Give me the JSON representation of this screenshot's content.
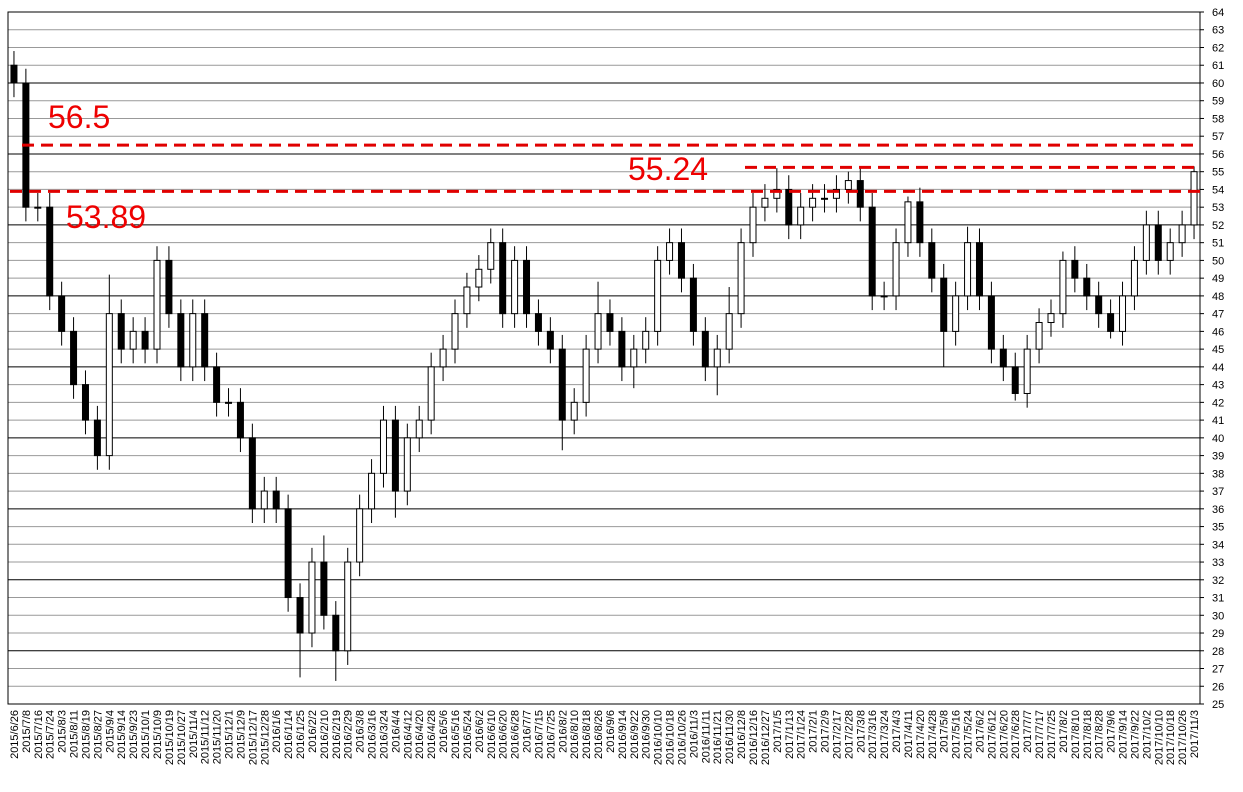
{
  "chart_data": {
    "type": "candlestick",
    "categories": [
      "2015/6/26",
      "2015/7/8",
      "2015/7/16",
      "2015/7/24",
      "2015/8/3",
      "2015/8/11",
      "2015/8/19",
      "2015/8/27",
      "2015/9/4",
      "2015/9/14",
      "2015/9/23",
      "2015/10/1",
      "2015/10/9",
      "2015/10/19",
      "2015/10/27",
      "2015/11/4",
      "2015/11/12",
      "2015/11/20",
      "2015/12/1",
      "2015/12/9",
      "2015/12/17",
      "2015/12/28",
      "2016/1/6",
      "2016/1/14",
      "2016/1/25",
      "2016/2/2",
      "2016/2/10",
      "2016/2/19",
      "2016/2/29",
      "2016/3/8",
      "2016/3/16",
      "2016/3/24",
      "2016/4/4",
      "2016/4/12",
      "2016/4/20",
      "2016/4/28",
      "2016/5/6",
      "2016/5/16",
      "2016/5/24",
      "2016/6/2",
      "2016/6/10",
      "2016/6/20",
      "2016/6/28",
      "2016/7/7",
      "2016/7/15",
      "2016/7/25",
      "2016/8/2",
      "2016/8/10",
      "2016/8/18",
      "2016/8/26",
      "2016/9/6",
      "2016/9/14",
      "2016/9/22",
      "2016/9/30",
      "2016/10/10",
      "2016/10/18",
      "2016/10/26",
      "2016/11/3",
      "2016/11/11",
      "2016/11/21",
      "2016/11/30",
      "2016/12/8",
      "2016/12/16",
      "2016/12/27",
      "2017/1/5",
      "2017/1/13",
      "2017/1/24",
      "2017/2/1",
      "2017/2/9",
      "2017/2/17",
      "2017/2/28",
      "2017/3/8",
      "2017/3/16",
      "2017/3/24",
      "2017/4/3",
      "2017/4/11",
      "2017/4/20",
      "2017/4/28",
      "2017/5/8",
      "2017/5/16",
      "2017/5/24",
      "2017/6/2",
      "2017/6/12",
      "2017/6/20",
      "2017/6/28",
      "2017/7/7",
      "2017/7/17",
      "2017/7/25",
      "2017/8/2",
      "2017/8/10",
      "2017/8/18",
      "2017/8/28",
      "2017/9/6",
      "2017/9/14",
      "2017/9/22",
      "2017/10/2",
      "2017/10/10",
      "2017/10/18",
      "2017/10/26",
      "2017/11/3"
    ],
    "open": [
      61,
      60,
      53,
      53,
      48,
      46,
      43,
      41,
      39,
      47,
      45,
      46,
      45,
      50,
      47,
      44,
      47,
      44,
      42,
      42,
      40,
      36,
      37,
      36,
      31,
      29,
      33,
      30,
      28,
      33,
      36,
      38,
      41,
      37,
      40,
      41,
      44,
      45,
      47,
      48.5,
      49.5,
      51,
      47,
      50,
      47,
      46,
      45,
      41,
      42,
      45,
      47,
      46,
      44,
      45,
      46,
      50,
      51,
      49,
      46,
      44,
      45,
      47,
      51,
      53,
      53.5,
      54,
      52,
      53,
      53.5,
      53.5,
      54,
      54.5,
      53,
      48,
      48,
      51,
      53.3,
      51,
      49,
      46,
      48,
      51,
      48,
      45,
      44,
      42.5,
      45,
      46.5,
      47,
      50,
      49,
      48,
      47,
      46,
      48,
      50,
      52,
      50,
      51,
      52
    ],
    "high": [
      61.8,
      60.8,
      53.8,
      53.8,
      48.8,
      46.8,
      43.8,
      41.8,
      49.2,
      47.8,
      46.8,
      46.8,
      50.8,
      50.8,
      47.8,
      47.8,
      47.8,
      44.8,
      42.8,
      42.8,
      40.8,
      37.8,
      37.8,
      36.8,
      31.8,
      33.8,
      34.5,
      30.8,
      33.8,
      36.8,
      38.8,
      41.8,
      41.8,
      40.8,
      41.8,
      44.8,
      45.8,
      47.8,
      49.3,
      50.3,
      51.8,
      51.8,
      50.8,
      50.8,
      47.8,
      46.8,
      45.8,
      42.8,
      45.8,
      48.8,
      47.8,
      46.8,
      45.8,
      46.8,
      50.8,
      51.8,
      51.8,
      49.8,
      46.8,
      45.8,
      48.5,
      51.8,
      53.8,
      54.3,
      55.2,
      54.8,
      53.8,
      54.3,
      54.3,
      54.8,
      55,
      55.3,
      53.8,
      48.8,
      51.8,
      53.6,
      54.1,
      51.8,
      49.8,
      48.8,
      51.9,
      51.8,
      48.8,
      45.8,
      44.8,
      45.8,
      47.3,
      47.8,
      50.5,
      50.8,
      49.8,
      48.8,
      47.8,
      48.8,
      50.8,
      52.8,
      52.8,
      51.8,
      52.8,
      55.3
    ],
    "low": [
      59.2,
      52.2,
      52.2,
      47.2,
      45.2,
      42.2,
      40.2,
      38.2,
      38.2,
      44.2,
      44.2,
      44.2,
      44.2,
      46.2,
      43.2,
      43.2,
      43.2,
      41.2,
      41.2,
      39.2,
      35.2,
      35.2,
      35.2,
      30.2,
      26.5,
      28.2,
      29.2,
      26.3,
      27.2,
      32.2,
      35.2,
      37.2,
      35.5,
      36.2,
      39.2,
      40.2,
      43.2,
      44.2,
      46.2,
      47.7,
      48.7,
      46.2,
      46.2,
      46.2,
      45.2,
      44.2,
      39.3,
      40.2,
      41.2,
      44.2,
      45.2,
      43.2,
      42.8,
      44.2,
      45.2,
      49.2,
      48.2,
      45.2,
      43.2,
      42.4,
      44.2,
      46.2,
      50.2,
      52.2,
      52.7,
      51.2,
      51.2,
      52.2,
      52.7,
      52.7,
      53.2,
      52.2,
      47.2,
      47.2,
      47.2,
      50.2,
      50.2,
      48.2,
      44,
      45.2,
      47.2,
      47.2,
      44.2,
      43.2,
      42.1,
      41.7,
      44.2,
      45.7,
      46.2,
      48.2,
      47.2,
      46.2,
      45.6,
      45.2,
      47.2,
      49.2,
      49.2,
      49.2,
      50.2,
      51.2
    ],
    "close": [
      60,
      53,
      53,
      48,
      46,
      43,
      41,
      39,
      47,
      45,
      46,
      45,
      50,
      47,
      44,
      47,
      44,
      42,
      42,
      40,
      36,
      37,
      36,
      31,
      29,
      33,
      30,
      28,
      33,
      36,
      38,
      41,
      37,
      40,
      41,
      44,
      45,
      47,
      48.5,
      49.5,
      51,
      47,
      50,
      47,
      46,
      45,
      41,
      42,
      45,
      47,
      46,
      44,
      45,
      46,
      50,
      51,
      49,
      46,
      44,
      45,
      47,
      51,
      53,
      53.5,
      54,
      52,
      53,
      53.5,
      53.5,
      54,
      54.5,
      53,
      48,
      48,
      51,
      53.3,
      51,
      49,
      46,
      48,
      51,
      48,
      45,
      44,
      42.5,
      45,
      46.5,
      47,
      50,
      49,
      48,
      47,
      46,
      48,
      50,
      52,
      50,
      51,
      52,
      55
    ],
    "ylim": [
      25,
      64
    ],
    "yticks": [
      25,
      26,
      27,
      28,
      29,
      30,
      31,
      32,
      33,
      34,
      35,
      36,
      37,
      38,
      39,
      40,
      41,
      42,
      43,
      44,
      45,
      46,
      47,
      48,
      49,
      50,
      51,
      52,
      53,
      54,
      55,
      56,
      57,
      58,
      59,
      60,
      61,
      62,
      63,
      64
    ],
    "grid": true,
    "hlines": [
      56.5,
      55.24,
      53.89
    ],
    "hline_color": "#e00000"
  }
}
